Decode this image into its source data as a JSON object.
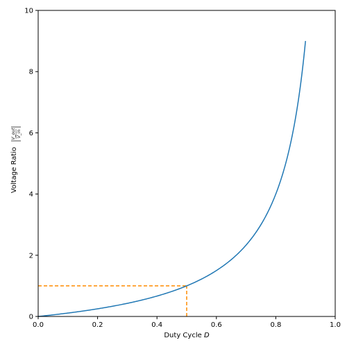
{
  "chart_data": {
    "type": "line",
    "title": "",
    "xlabel": "Duty Cycle",
    "xlabel_var": "D",
    "ylabel": "Voltage Ratio",
    "ylabel_num": "V_out",
    "ylabel_den": "V_in",
    "xlim": [
      0,
      1
    ],
    "ylim": [
      0,
      10
    ],
    "xticks": [
      "0.0",
      "0.2",
      "0.4",
      "0.6",
      "0.8",
      "1.0"
    ],
    "yticks": [
      "0",
      "2",
      "4",
      "6",
      "8",
      "10"
    ],
    "grid": false,
    "series": [
      {
        "color": "#1f77b4",
        "style": "solid",
        "formula": "D/(1-D)",
        "x": [
          0.0,
          0.05,
          0.1,
          0.15,
          0.2,
          0.25,
          0.3,
          0.35,
          0.4,
          0.45,
          0.5,
          0.55,
          0.6,
          0.65,
          0.7,
          0.75,
          0.8,
          0.82,
          0.84,
          0.86,
          0.88,
          0.9
        ],
        "y": [
          0.0,
          0.053,
          0.111,
          0.176,
          0.25,
          0.333,
          0.429,
          0.538,
          0.667,
          0.818,
          1.0,
          1.222,
          1.5,
          1.857,
          2.333,
          3.0,
          4.0,
          4.556,
          5.25,
          6.143,
          7.333,
          9.0
        ]
      }
    ],
    "reference_lines": [
      {
        "color": "#ff8c00",
        "style": "dashed",
        "x": [
          0.0,
          0.5
        ],
        "y": [
          1.0,
          1.0
        ]
      },
      {
        "color": "#ff8c00",
        "style": "dashed",
        "x": [
          0.5,
          0.5
        ],
        "y": [
          0.0,
          1.0
        ]
      }
    ]
  }
}
